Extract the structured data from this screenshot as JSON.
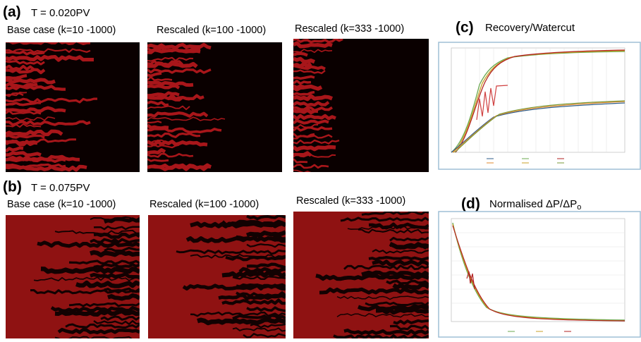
{
  "panels": [
    {
      "label": "(a)",
      "time": "T = 0.020PV",
      "captions": [
        "Base case (k=10 -1000)",
        "Rescaled (k=100 -1000)",
        "Rescaled (k=333 -1000)"
      ]
    },
    {
      "label": "(b)",
      "time": "T = 0.075PV",
      "captions": [
        "Base case (k=10 -1000)",
        "Rescaled (k=100 -1000)",
        "Rescaled (k=333 -1000)"
      ]
    }
  ],
  "plots": [
    {
      "label": "(c)",
      "title": "Recovery/Watercut"
    },
    {
      "label": "(d)",
      "title": "Normalised ΔP/ΔP",
      "title_subscript": "o"
    }
  ]
}
